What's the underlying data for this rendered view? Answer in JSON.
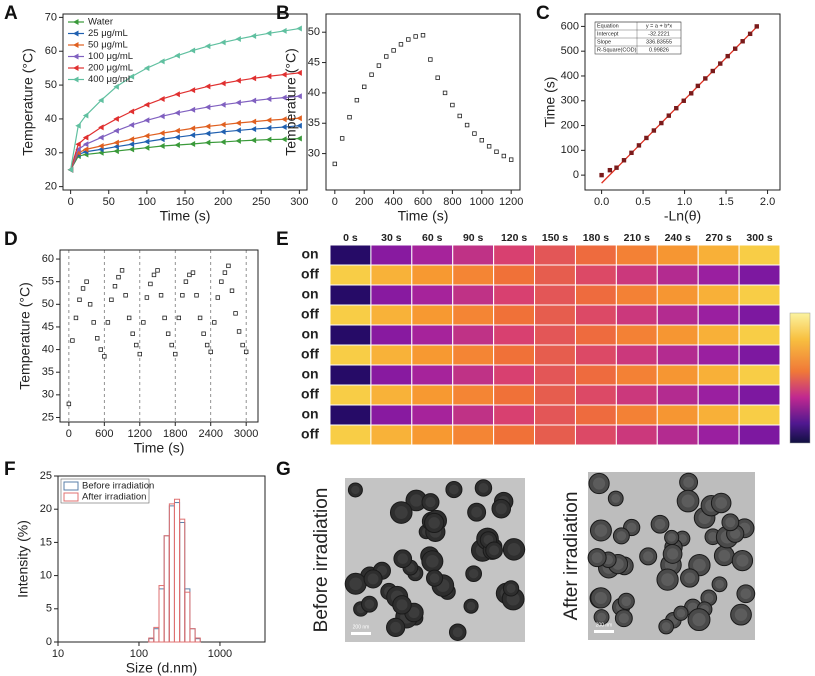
{
  "chart_data": [
    {
      "panel": "A",
      "type": "line",
      "xlabel": "Time (s)",
      "ylabel": "Temperature (°C)",
      "xlim": [
        -10,
        310
      ],
      "ylim": [
        19,
        71
      ],
      "xticks": [
        0,
        50,
        100,
        150,
        200,
        250,
        300
      ],
      "yticks": [
        20,
        30,
        40,
        50,
        60,
        70
      ],
      "legend": "upper left",
      "x": [
        0,
        10,
        20,
        40,
        60,
        80,
        100,
        120,
        140,
        160,
        180,
        200,
        220,
        240,
        260,
        280,
        300
      ],
      "series": [
        {
          "name": "Water",
          "color": "#3a9a3a",
          "values": [
            25,
            29,
            29.5,
            30,
            30.5,
            31,
            31.5,
            32,
            32.3,
            32.6,
            33,
            33.2,
            33.5,
            33.7,
            33.9,
            34,
            34.2
          ]
        },
        {
          "name": "25 μg/mL",
          "color": "#2060b0",
          "values": [
            25,
            29.5,
            30.3,
            31,
            31.8,
            32.5,
            33.3,
            34,
            34.6,
            35.2,
            35.7,
            36.2,
            36.6,
            37,
            37.3,
            37.6,
            38
          ]
        },
        {
          "name": "50 μg/mL",
          "color": "#e06020",
          "values": [
            25,
            30,
            31,
            32,
            33,
            34,
            35,
            35.8,
            36.5,
            37.2,
            37.8,
            38.3,
            38.8,
            39.2,
            39.6,
            39.9,
            40.2
          ]
        },
        {
          "name": "100 μg/mL",
          "color": "#8060c0",
          "values": [
            25,
            31,
            32.5,
            34.5,
            36.5,
            38.2,
            39.6,
            40.8,
            41.8,
            42.7,
            43.5,
            44.2,
            44.8,
            45.4,
            45.9,
            46.3,
            46.7
          ]
        },
        {
          "name": "200 μg/mL",
          "color": "#e03030",
          "values": [
            25,
            32.5,
            34.5,
            37.5,
            40,
            42.2,
            44.2,
            45.9,
            47.3,
            48.5,
            49.6,
            50.5,
            51.3,
            52,
            52.6,
            53.1,
            53.6
          ]
        },
        {
          "name": "400 μg/mL",
          "color": "#60c0a0",
          "values": [
            25,
            38,
            41,
            45.5,
            49.5,
            52.5,
            55,
            57,
            58.7,
            60.2,
            61.5,
            62.6,
            63.6,
            64.5,
            65.3,
            66,
            66.7
          ]
        }
      ]
    },
    {
      "panel": "B",
      "type": "scatter",
      "xlabel": "Time (s)",
      "ylabel": "Temperature (°C)",
      "xlim": [
        -60,
        1260
      ],
      "ylim": [
        24,
        53
      ],
      "xticks": [
        0,
        200,
        400,
        600,
        800,
        1000,
        1200
      ],
      "yticks": [
        30,
        35,
        40,
        45,
        50
      ],
      "x": [
        0,
        50,
        100,
        150,
        200,
        250,
        300,
        350,
        400,
        450,
        500,
        550,
        600,
        650,
        700,
        750,
        800,
        850,
        900,
        950,
        1000,
        1050,
        1100,
        1150,
        1200
      ],
      "series": [
        {
          "color": "#222222",
          "marker": "open-square",
          "values": [
            28.3,
            32.5,
            36,
            38.8,
            41,
            43,
            44.5,
            46,
            47,
            48,
            48.8,
            49.3,
            49.5,
            45.5,
            42.5,
            40,
            38,
            36.2,
            34.7,
            33.3,
            32.2,
            31.2,
            30.3,
            29.6,
            29
          ]
        }
      ]
    },
    {
      "panel": "C",
      "type": "scatter",
      "xlabel": "-Ln(θ)",
      "ylabel": "Time (s)",
      "xlim": [
        -0.2,
        2.15
      ],
      "ylim": [
        -60,
        650
      ],
      "xticks": [
        {
          "value": 0,
          "label": "0.0"
        },
        {
          "value": 0.5,
          "label": "0.5"
        },
        {
          "value": 1,
          "label": "1.0"
        },
        {
          "value": 1.5,
          "label": "1.5"
        },
        {
          "value": 2,
          "label": "2.0"
        }
      ],
      "yticks": [
        0,
        100,
        200,
        300,
        400,
        500,
        600
      ],
      "x": [
        0.0,
        0.1,
        0.18,
        0.27,
        0.36,
        0.45,
        0.54,
        0.63,
        0.72,
        0.81,
        0.9,
        0.99,
        1.08,
        1.16,
        1.25,
        1.34,
        1.43,
        1.52,
        1.61,
        1.7,
        1.79,
        1.87
      ],
      "series": [
        {
          "color": "#7a1a1a",
          "marker": "square",
          "values": [
            0,
            20,
            30,
            60,
            90,
            120,
            150,
            180,
            210,
            240,
            270,
            300,
            330,
            360,
            390,
            420,
            450,
            480,
            510,
            540,
            570,
            600
          ]
        }
      ],
      "fit_color": "#e03020",
      "inset": [
        [
          "Equation",
          "y = a + b*x"
        ],
        [
          "Intercept",
          -32.2221
        ],
        [
          "Slope",
          336.83555
        ],
        [
          "R-Square(COD)",
          0.99826
        ]
      ]
    },
    {
      "panel": "D",
      "type": "scatter",
      "xlabel": "Time (s)",
      "ylabel": "Temperature (°C)",
      "xlim": [
        -150,
        3200
      ],
      "ylim": [
        24,
        62
      ],
      "xticks": [
        0,
        600,
        1200,
        1800,
        2400,
        3000
      ],
      "yticks": [
        25,
        30,
        35,
        40,
        45,
        50,
        55,
        60
      ],
      "dashed_xgrid": true,
      "x": [
        0,
        60,
        120,
        180,
        240,
        300,
        360,
        420,
        480,
        540,
        600,
        660,
        720,
        780,
        840,
        900,
        960,
        1020,
        1080,
        1140,
        1200,
        1260,
        1320,
        1380,
        1440,
        1500,
        1560,
        1620,
        1680,
        1740,
        1800,
        1860,
        1920,
        1980,
        2040,
        2100,
        2160,
        2220,
        2280,
        2340,
        2400,
        2460,
        2520,
        2580,
        2640,
        2700,
        2760,
        2820,
        2880,
        2940,
        3000
      ],
      "series": [
        {
          "color": "#222222",
          "marker": "open-square",
          "values": [
            28,
            42,
            47,
            51,
            53.5,
            55,
            50,
            46,
            42.5,
            40,
            38.5,
            46,
            51,
            54,
            56,
            57.5,
            52,
            47,
            43.5,
            41,
            39,
            46,
            51.5,
            54.5,
            56.5,
            57.5,
            52,
            47,
            43.5,
            41,
            39,
            47,
            52,
            55,
            56.5,
            57,
            52,
            47,
            43.5,
            41,
            39.5,
            46,
            51.5,
            55,
            57,
            58.5,
            53,
            48,
            44,
            41,
            39.5
          ]
        }
      ]
    },
    {
      "panel": "E",
      "type": "image_grid",
      "columns": [
        "0 s",
        "30 s",
        "60 s",
        "90 s",
        "120 s",
        "150 s",
        "180 s",
        "210 s",
        "240 s",
        "270 s",
        "300 s"
      ],
      "rows": [
        "on",
        "off",
        "on",
        "off",
        "on",
        "off",
        "on",
        "off",
        "on",
        "off"
      ]
    },
    {
      "panel": "F",
      "type": "histogram",
      "xlabel": "Size (d.nm)",
      "ylabel": "Intensity (%)",
      "xscale": "log",
      "xlim": [
        10,
        3600
      ],
      "ylim": [
        0,
        25
      ],
      "xticks": [
        10,
        100,
        1000
      ],
      "yticks": [
        0,
        5,
        10,
        15,
        20,
        25
      ],
      "legend": "upper left",
      "x": [
        142,
        164,
        190,
        220,
        255,
        295,
        342,
        396,
        459,
        531
      ],
      "series": [
        {
          "name": "Before irradiation",
          "color": "#5a7fa8",
          "values": [
            0.5,
            2,
            8,
            16,
            20.5,
            21,
            18,
            8,
            2,
            0.5
          ]
        },
        {
          "name": "After irradiation",
          "color": "#e07070",
          "values": [
            0.6,
            2.2,
            8.5,
            16,
            20.8,
            21.5,
            18.5,
            7.5,
            2,
            0.6
          ]
        }
      ]
    },
    {
      "panel": "G",
      "type": "micrograph",
      "images": [
        {
          "label": "Before irradiation",
          "scale_bar": "200 nm"
        },
        {
          "label": "After irradiation",
          "scale_bar": "200 nm"
        }
      ]
    }
  ]
}
